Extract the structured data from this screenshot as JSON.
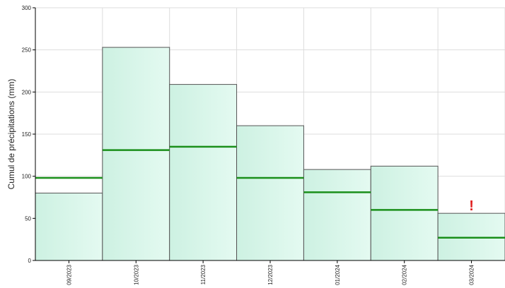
{
  "chart_data": {
    "type": "bar",
    "title": "",
    "xlabel": "",
    "ylabel": "Cumul de précipitations (mm)",
    "ylim": [
      0,
      300
    ],
    "yticks": [
      0,
      50,
      100,
      150,
      200,
      250,
      300
    ],
    "grid": true,
    "categories": [
      "09/2023",
      "10/2023",
      "11/2023",
      "12/2023",
      "01/2024",
      "02/2024",
      "03/2024"
    ],
    "series": [
      {
        "values": [
          80,
          253,
          209,
          160,
          108,
          112,
          56
        ]
      },
      {
        "type": "line",
        "values": [
          98,
          131,
          135,
          98,
          81,
          60,
          27
        ]
      }
    ],
    "annotations": [
      {
        "category": "03/2024",
        "text": "!"
      }
    ],
    "colors": {
      "bar_fill": "#d6f5ea",
      "bar_stroke": "#555555",
      "reference_line": "#1a8f1a",
      "warning": "#e02020",
      "grid": "#dddddd",
      "axis": "#000000"
    }
  }
}
